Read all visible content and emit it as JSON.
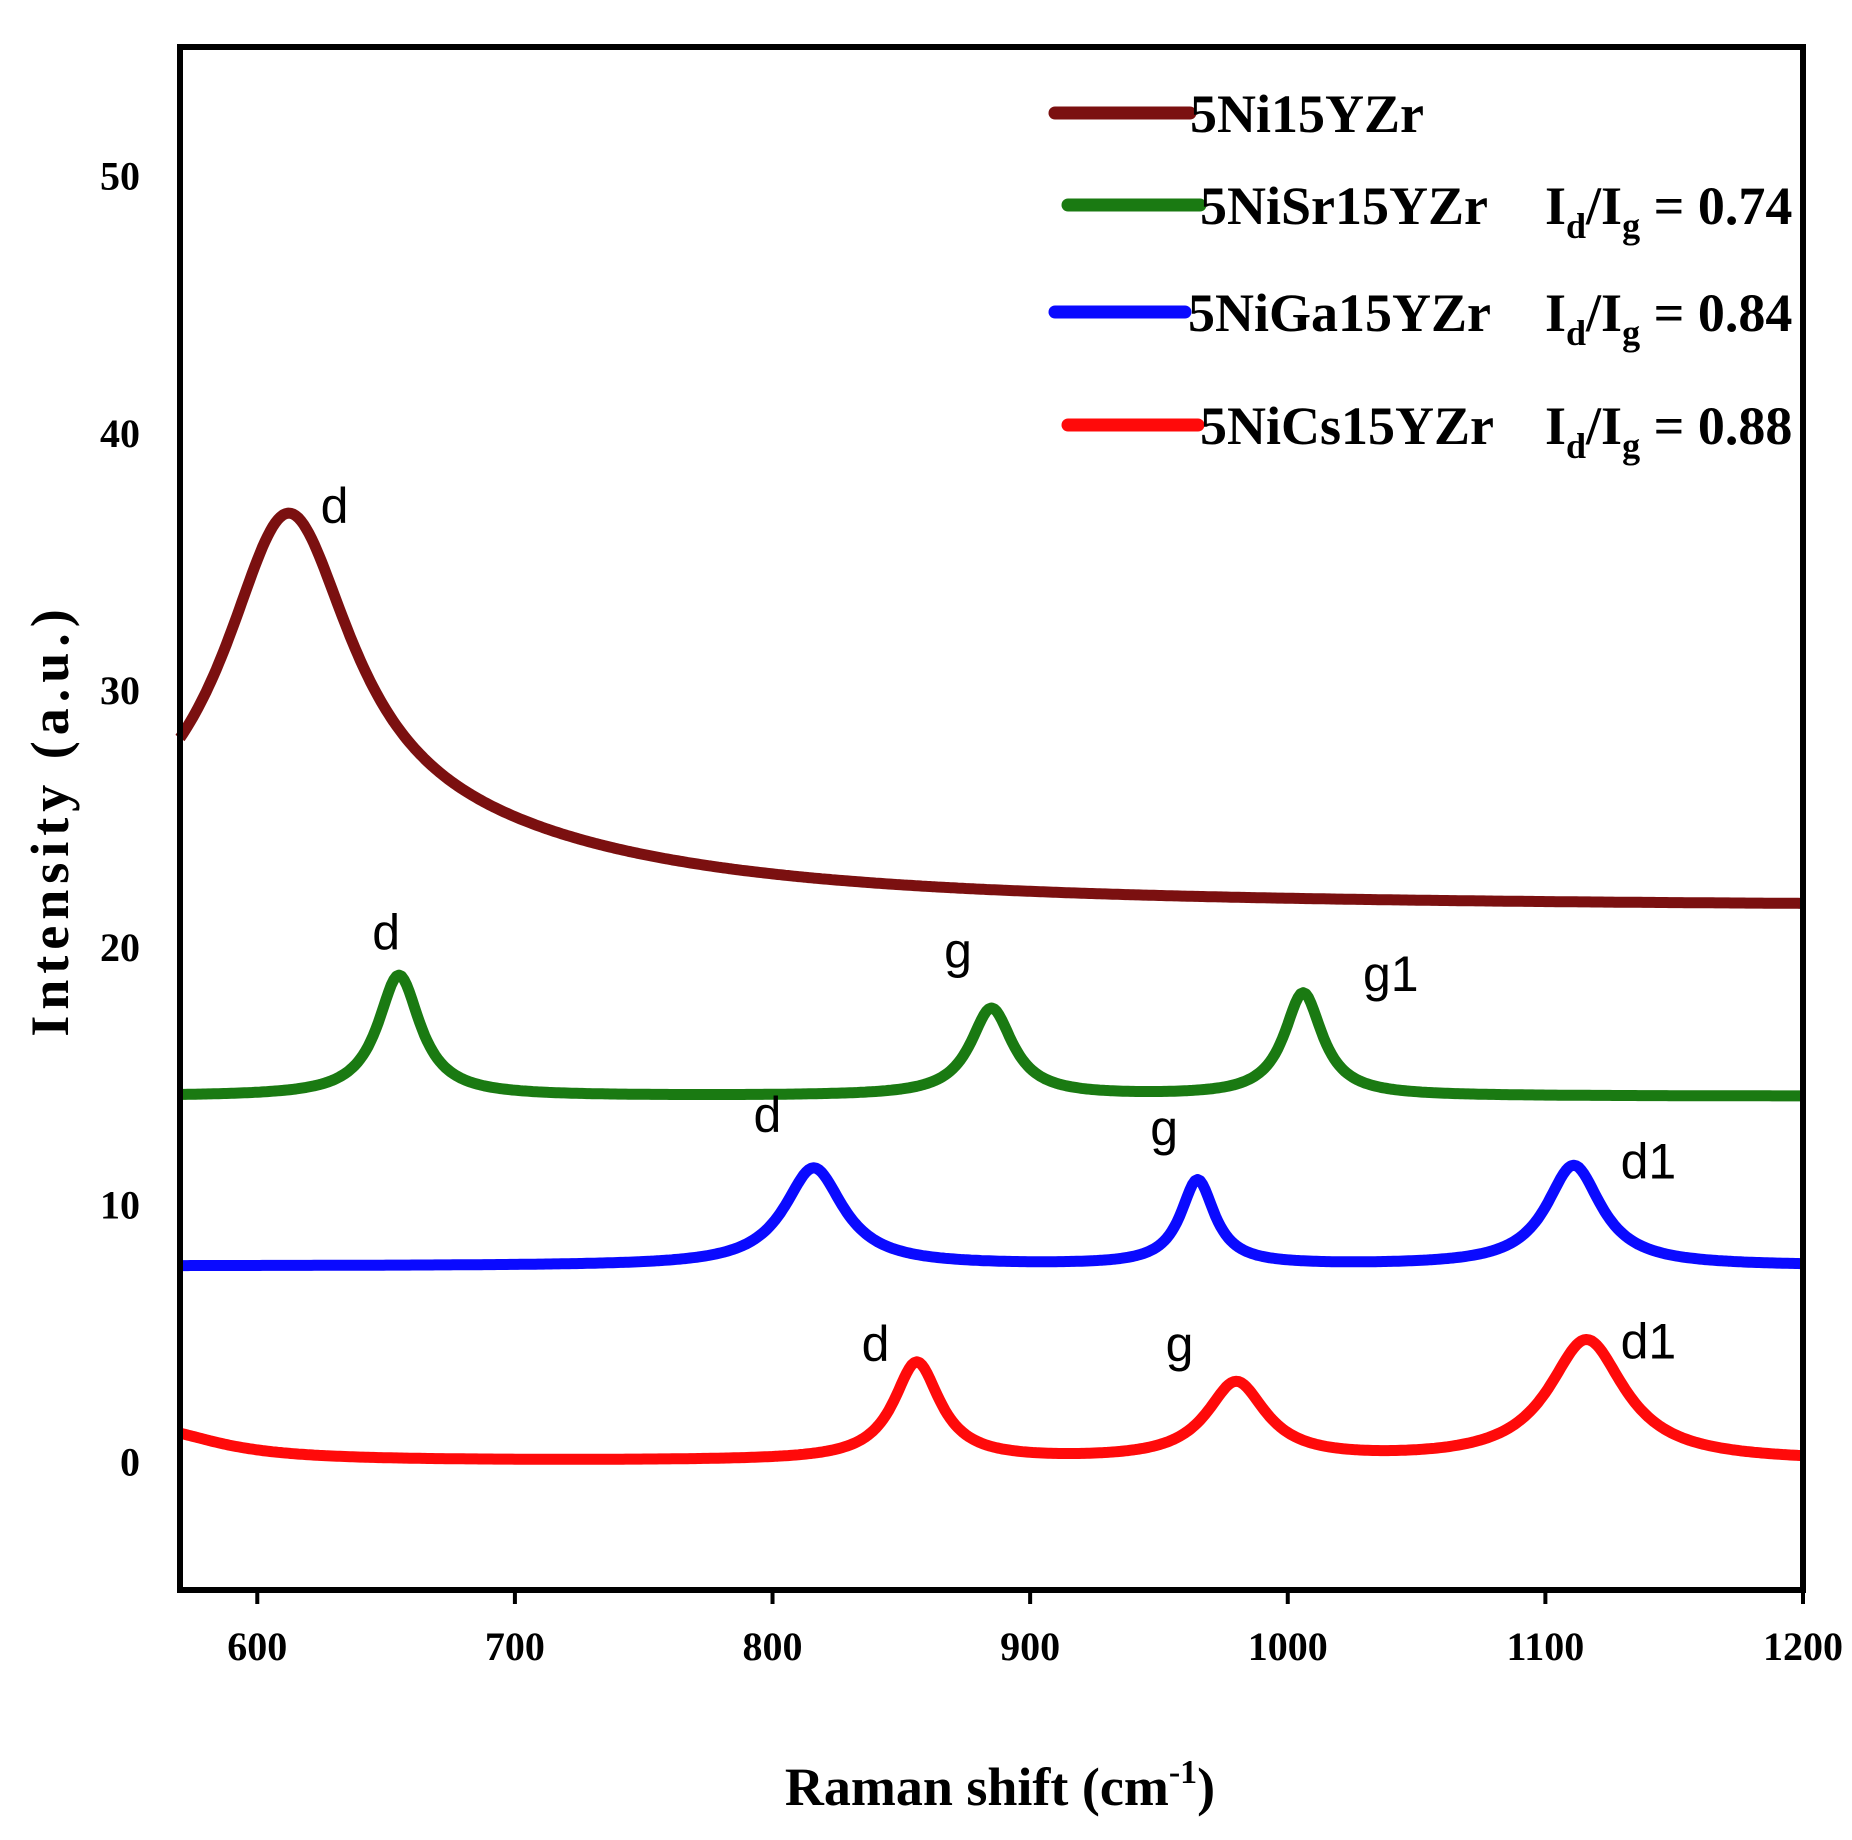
{
  "chart_data": {
    "type": "line",
    "title": "",
    "xlabel": "Raman shift (cm",
    "xlabel_sup": "-1",
    "xlabel_close": ")",
    "ylabel": "Intensity (a.u.)",
    "xlim": [
      570,
      1200
    ],
    "ylim": [
      -5,
      55
    ],
    "xticks": [
      "600",
      "700",
      "800",
      "900",
      "1000",
      "1100",
      "1200"
    ],
    "yticks": [
      "0",
      "10",
      "20",
      "30",
      "40",
      "50"
    ],
    "legend_position": "top-right",
    "series": [
      {
        "name": "5Ni15YZr",
        "color": "#7b1010",
        "ratio_prefix": "",
        "ratio_value": "",
        "baseline": 21.6,
        "peaks": [
          {
            "label": "d",
            "center": 612,
            "height": 12.4,
            "width": 30,
            "label_x": 630,
            "label_y": 36.5
          }
        ],
        "tail": {
          "center": 630,
          "height": 3.0,
          "width": 120
        }
      },
      {
        "name": "5NiSr15YZr",
        "color": "#1a7a12",
        "ratio_prefix": "Id/Ig = ",
        "ratio_value": "0.74",
        "baseline": 14.2,
        "peaks": [
          {
            "label": "d",
            "center": 655,
            "height": 4.7,
            "width": 10,
            "label_x": 650,
            "label_y": 19.9
          },
          {
            "label": "g",
            "center": 885,
            "height": 3.4,
            "width": 10,
            "label_x": 872,
            "label_y": 19.2
          },
          {
            "label": "g1",
            "center": 1006,
            "height": 4.0,
            "width": 9,
            "label_x": 1040,
            "label_y": 18.3
          }
        ]
      },
      {
        "name": "5NiGa15YZr",
        "color": "#0a0aff",
        "ratio_prefix": "Id/Ig = ",
        "ratio_value": "0.84",
        "baseline": 7.6,
        "peaks": [
          {
            "label": "d",
            "center": 816,
            "height": 3.8,
            "width": 14,
            "label_x": 798,
            "label_y": 12.8
          },
          {
            "label": "g",
            "center": 965,
            "height": 3.3,
            "width": 8,
            "label_x": 952,
            "label_y": 12.3
          },
          {
            "label": "d1",
            "center": 1111,
            "height": 3.9,
            "width": 13,
            "label_x": 1140,
            "label_y": 11.0
          }
        ]
      },
      {
        "name": "5NiCs15YZr",
        "color": "#ff0a0a",
        "ratio_prefix": "Id/Ig = ",
        "ratio_value": "0.88",
        "baseline": 0,
        "peaks": [
          {
            "label": "d",
            "center": 856,
            "height": 3.8,
            "width": 11,
            "label_x": 840,
            "label_y": 3.9
          },
          {
            "label": "g",
            "center": 980,
            "height": 3.0,
            "width": 14,
            "label_x": 958,
            "label_y": 3.9
          },
          {
            "label": "d1",
            "center": 1116,
            "height": 4.7,
            "width": 18,
            "label_x": 1140,
            "label_y": 4.0
          }
        ],
        "start_bump": {
          "center": 560,
          "height": 1.2,
          "width": 30
        }
      }
    ]
  }
}
